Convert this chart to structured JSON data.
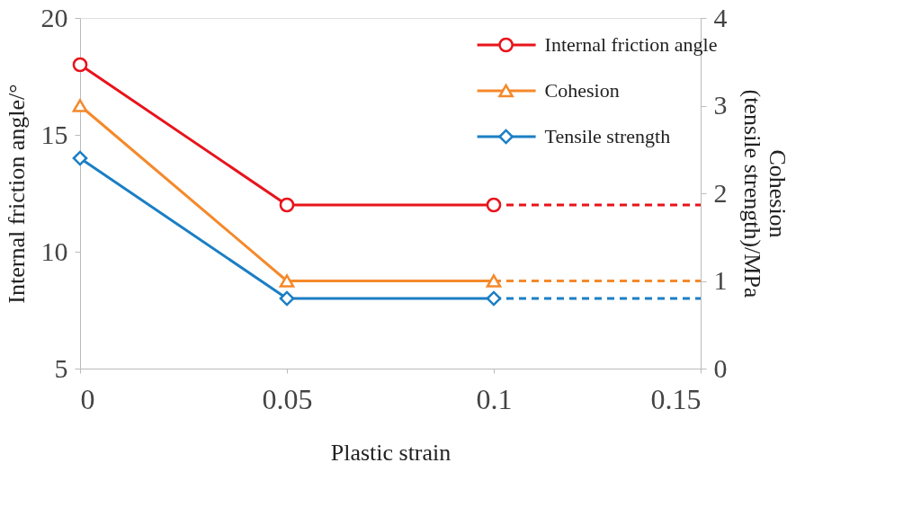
{
  "chart_data": {
    "type": "line",
    "xlabel": "Plastic strain",
    "ylabel": "Internal friction angle/°",
    "y2label": "Cohesion\n(tensile strength)/MPa",
    "x": [
      0,
      0.05,
      0.1,
      0.15
    ],
    "series": [
      {
        "name": "Internal friction angle",
        "color": "#e8141b",
        "values": [
          18,
          12,
          12,
          null
        ],
        "marker": "circle"
      },
      {
        "name": "Cohesion",
        "color": "#f5892a",
        "values": [
          3.0,
          1.0,
          1.0,
          null
        ],
        "axis": "y2",
        "marker": "triangle"
      },
      {
        "name": "Tensile strength",
        "color": "#1b7fc4",
        "values": [
          2.4,
          0.8,
          0.8,
          null
        ],
        "axis": "y2",
        "marker": "diamond"
      },
      {
        "color": "#e8141b",
        "values": [
          null,
          null,
          12,
          12
        ],
        "marker": "none",
        "line_style": "dashed"
      },
      {
        "color": "#f5892a",
        "values": [
          null,
          null,
          1.0,
          1.0
        ],
        "axis": "y2",
        "marker": "none",
        "line_style": "dashed"
      },
      {
        "color": "#1b7fc4",
        "values": [
          null,
          null,
          0.8,
          0.8
        ],
        "axis": "y2",
        "marker": "none",
        "line_style": "dashed"
      }
    ],
    "xlim": [
      0,
      0.15
    ],
    "xticks": [
      0,
      0.05,
      0.1,
      0.15
    ],
    "ylim": [
      5,
      20
    ],
    "yticks": [
      5,
      10,
      15,
      20
    ],
    "y2lim": [
      0,
      4
    ],
    "y2ticks": [
      0,
      1,
      2,
      3,
      4
    ],
    "grid": false,
    "legend": "top right",
    "line_style": "solid"
  }
}
